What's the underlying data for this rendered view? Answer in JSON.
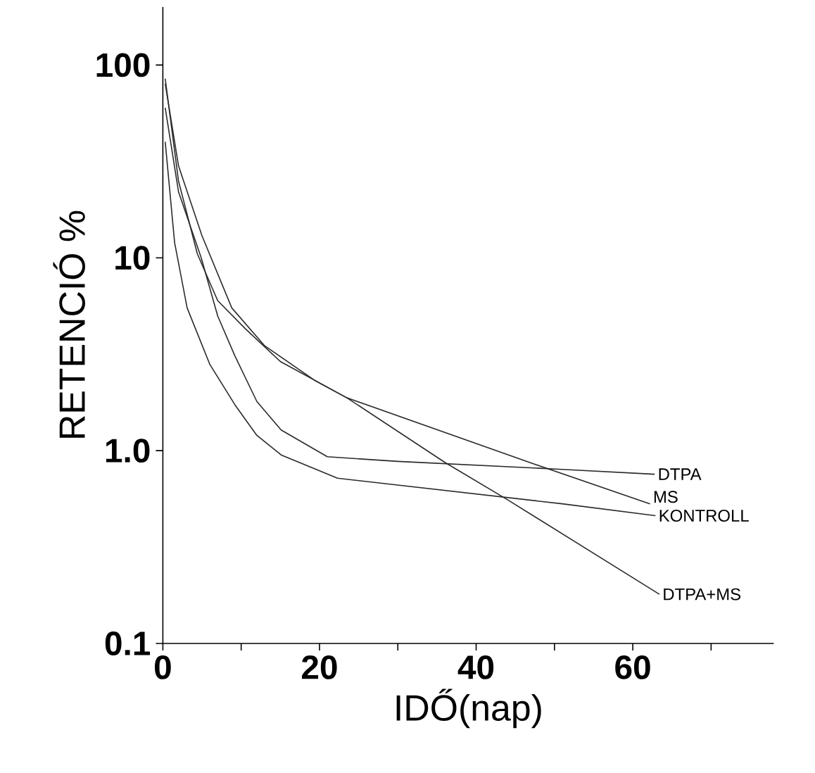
{
  "chart_data": {
    "type": "line",
    "xlabel": "IDŐ(nap)",
    "ylabel": "RETENCIÓ %",
    "log": "y",
    "color": "#2a2a2a",
    "xlim": [
      0,
      78
    ],
    "xticks": [
      0,
      {
        "value": 10,
        "label": null
      },
      20,
      {
        "value": 30,
        "label": null
      },
      40,
      {
        "value": 50,
        "label": null
      },
      60,
      {
        "value": 70,
        "label": null
      }
    ],
    "ylim": [
      0.1,
      200
    ],
    "yticks": [
      {
        "value": 0.1,
        "label": "0.1"
      },
      {
        "value": 1,
        "label": "1.0"
      },
      10,
      100
    ],
    "series": [
      {
        "name": "DTPA",
        "x": [
          0.3,
          2,
          4.9,
          7,
          9.2,
          12,
          15.1,
          21,
          30,
          51,
          62.8
        ],
        "values": [
          60,
          22,
          10,
          5,
          3.1,
          1.8,
          1.28,
          0.93,
          0.88,
          0.8,
          0.755
        ]
      },
      {
        "name": "MS",
        "x": [
          0.3,
          2,
          5,
          8.8,
          13,
          19.5,
          23.5,
          47.5,
          62.2
        ],
        "values": [
          80,
          30,
          13,
          5.5,
          3.5,
          2.3,
          1.88,
          0.85,
          0.53
        ]
      },
      {
        "name": "KONTROLL",
        "x": [
          0.3,
          1.5,
          3.1,
          6,
          9.2,
          12,
          15.1,
          22.3,
          51,
          62.9
        ],
        "values": [
          40,
          12,
          5.5,
          2.8,
          1.73,
          1.2,
          0.95,
          0.72,
          0.53,
          0.46
        ]
      },
      {
        "name": "DTPA+MS",
        "x": [
          0.3,
          2,
          4.4,
          7,
          10.5,
          15,
          23.5,
          36,
          43.9,
          63.4
        ],
        "values": [
          85,
          25,
          10.5,
          6,
          4.3,
          2.9,
          1.88,
          0.87,
          0.56,
          0.18
        ]
      }
    ]
  }
}
